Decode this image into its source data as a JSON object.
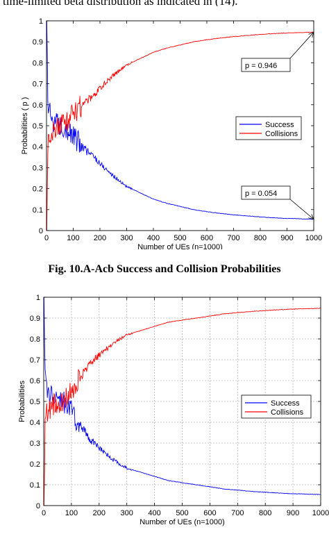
{
  "page": {
    "top_text": "time-limited beta distribution as indicated in (14).",
    "caption": "Fig. 10.A-Acb Success and Collision Probabilities"
  },
  "chart_data": [
    {
      "type": "line",
      "title": "",
      "xlabel": "Number of UEs (n=1000)",
      "ylabel": "Probabilities ( p )",
      "xlim": [
        0,
        1000
      ],
      "ylim": [
        0,
        1
      ],
      "xticks": [
        "0",
        "100",
        "200",
        "300",
        "400",
        "500",
        "600",
        "700",
        "800",
        "900",
        "1000"
      ],
      "yticks": [
        "0",
        "0.1",
        "0.2",
        "0.3",
        "0.4",
        "0.5",
        "0.6",
        "0.7",
        "0.8",
        "0.9",
        "1"
      ],
      "grid": false,
      "legend_position": "right",
      "series": [
        {
          "name": "Success",
          "color": "#0000ff",
          "x": [
            1,
            5,
            10,
            20,
            30,
            40,
            50,
            60,
            70,
            80,
            90,
            100,
            120,
            140,
            160,
            180,
            200,
            250,
            300,
            350,
            400,
            450,
            500,
            550,
            600,
            650,
            700,
            750,
            800,
            850,
            900,
            950,
            1000
          ],
          "y": [
            1.0,
            0.62,
            0.56,
            0.54,
            0.52,
            0.51,
            0.5,
            0.5,
            0.5,
            0.48,
            0.46,
            0.45,
            0.42,
            0.39,
            0.37,
            0.35,
            0.32,
            0.26,
            0.21,
            0.18,
            0.15,
            0.13,
            0.115,
            0.1,
            0.09,
            0.082,
            0.075,
            0.07,
            0.065,
            0.061,
            0.058,
            0.056,
            0.054
          ]
        },
        {
          "name": "Collisions",
          "color": "#ff0000",
          "x": [
            1,
            5,
            10,
            20,
            30,
            40,
            50,
            60,
            70,
            80,
            90,
            100,
            120,
            140,
            160,
            180,
            200,
            250,
            300,
            350,
            400,
            450,
            500,
            550,
            600,
            650,
            700,
            750,
            800,
            850,
            900,
            950,
            1000
          ],
          "y": [
            0.0,
            0.38,
            0.44,
            0.46,
            0.48,
            0.49,
            0.5,
            0.5,
            0.5,
            0.52,
            0.54,
            0.55,
            0.58,
            0.61,
            0.63,
            0.65,
            0.68,
            0.74,
            0.79,
            0.82,
            0.85,
            0.87,
            0.885,
            0.9,
            0.91,
            0.918,
            0.925,
            0.93,
            0.935,
            0.939,
            0.942,
            0.944,
            0.946
          ]
        }
      ],
      "annotations": [
        {
          "text": "p = 0.946",
          "x": 1000,
          "y": 0.946
        },
        {
          "text": "p = 0.054",
          "x": 1000,
          "y": 0.054
        }
      ]
    },
    {
      "type": "line",
      "title": "",
      "xlabel": "Number of UEs (n=1000)",
      "ylabel": "Probabilities",
      "xlim": [
        0,
        1000
      ],
      "ylim": [
        0,
        1
      ],
      "xticks": [
        "0",
        "100",
        "200",
        "300",
        "400",
        "500",
        "600",
        "700",
        "800",
        "900",
        "1000"
      ],
      "yticks": [
        "0",
        "0.1",
        "0.2",
        "0.3",
        "0.4",
        "0.5",
        "0.6",
        "0.7",
        "0.8",
        "0.9",
        "1"
      ],
      "grid": true,
      "legend_position": "right",
      "series": [
        {
          "name": "Success",
          "color": "#0000ff",
          "x": [
            1,
            5,
            10,
            20,
            30,
            40,
            50,
            60,
            70,
            80,
            90,
            100,
            120,
            140,
            160,
            180,
            200,
            250,
            300,
            350,
            400,
            450,
            500,
            550,
            600,
            650,
            700,
            750,
            800,
            850,
            900,
            950,
            1000
          ],
          "y": [
            1.0,
            0.62,
            0.56,
            0.54,
            0.52,
            0.51,
            0.5,
            0.5,
            0.5,
            0.48,
            0.46,
            0.45,
            0.41,
            0.37,
            0.33,
            0.3,
            0.28,
            0.22,
            0.18,
            0.16,
            0.14,
            0.12,
            0.11,
            0.1,
            0.09,
            0.08,
            0.074,
            0.068,
            0.064,
            0.06,
            0.057,
            0.055,
            0.053
          ]
        },
        {
          "name": "Collisions",
          "color": "#ff0000",
          "x": [
            1,
            5,
            10,
            20,
            30,
            40,
            50,
            60,
            70,
            80,
            90,
            100,
            120,
            140,
            160,
            180,
            200,
            250,
            300,
            350,
            400,
            450,
            500,
            550,
            600,
            650,
            700,
            750,
            800,
            850,
            900,
            950,
            1000
          ],
          "y": [
            0.0,
            0.38,
            0.44,
            0.46,
            0.48,
            0.49,
            0.5,
            0.5,
            0.5,
            0.52,
            0.54,
            0.55,
            0.59,
            0.63,
            0.67,
            0.7,
            0.72,
            0.78,
            0.82,
            0.84,
            0.86,
            0.88,
            0.89,
            0.9,
            0.91,
            0.92,
            0.926,
            0.932,
            0.936,
            0.94,
            0.943,
            0.945,
            0.947
          ]
        }
      ]
    }
  ]
}
